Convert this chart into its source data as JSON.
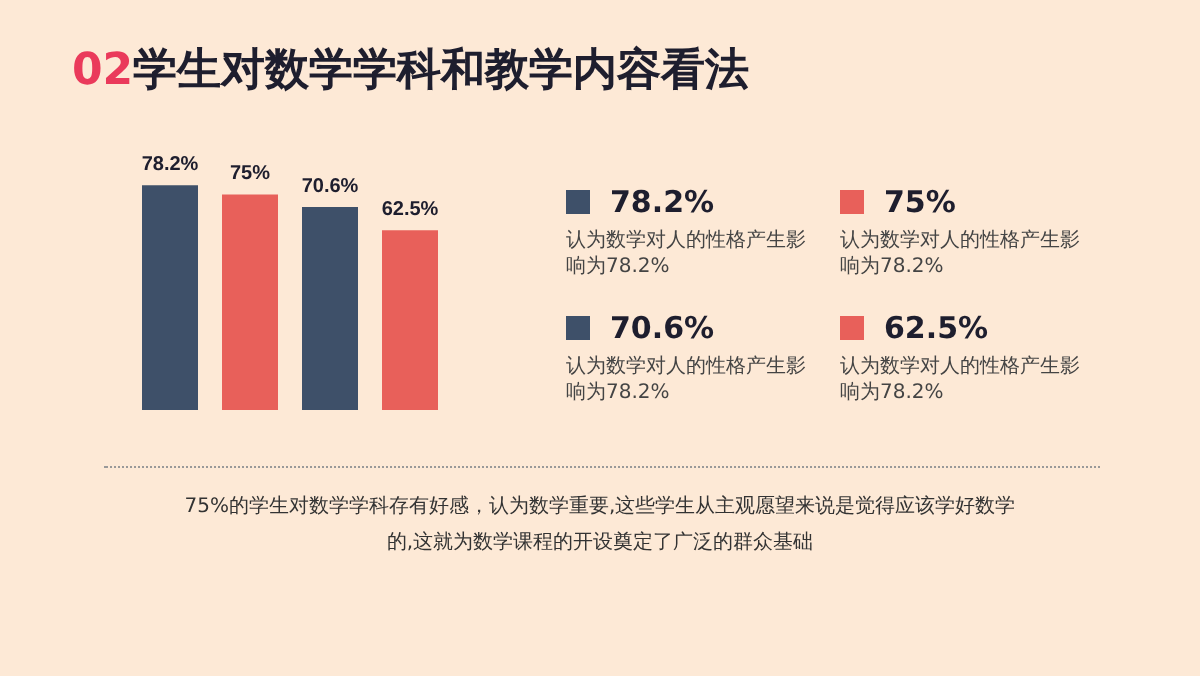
{
  "chart_data": {
    "type": "bar",
    "title": "02学生对数学学科和教学内容看法",
    "categories": [
      null,
      null,
      null,
      null
    ],
    "values": [
      78.2,
      75,
      70.6,
      62.5
    ],
    "colors": [
      "#3e5069",
      "#e8605a",
      "#3e5069",
      "#e8605a"
    ],
    "value_labels": [
      "78.2%",
      "75%",
      "70.6%",
      "62.5%"
    ],
    "grid": false,
    "annotations": [
      "78.2%",
      "认为数学对人的性格产生影响为78.2%",
      "75%",
      "认为数学对人的性格产生影响为78.2%",
      "70.6%",
      "认为数学对人的性格产生影响为78.2%",
      "62.5%",
      "认为数学对人的性格产生影响为78.2%",
      "75%的学生对数学学科存有好感，认为数学重要,这些学生从主观愿望来说是觉得应该学好数学的,这就为数学课程的开设奠定了广泛的群众基础"
    ]
  }
}
